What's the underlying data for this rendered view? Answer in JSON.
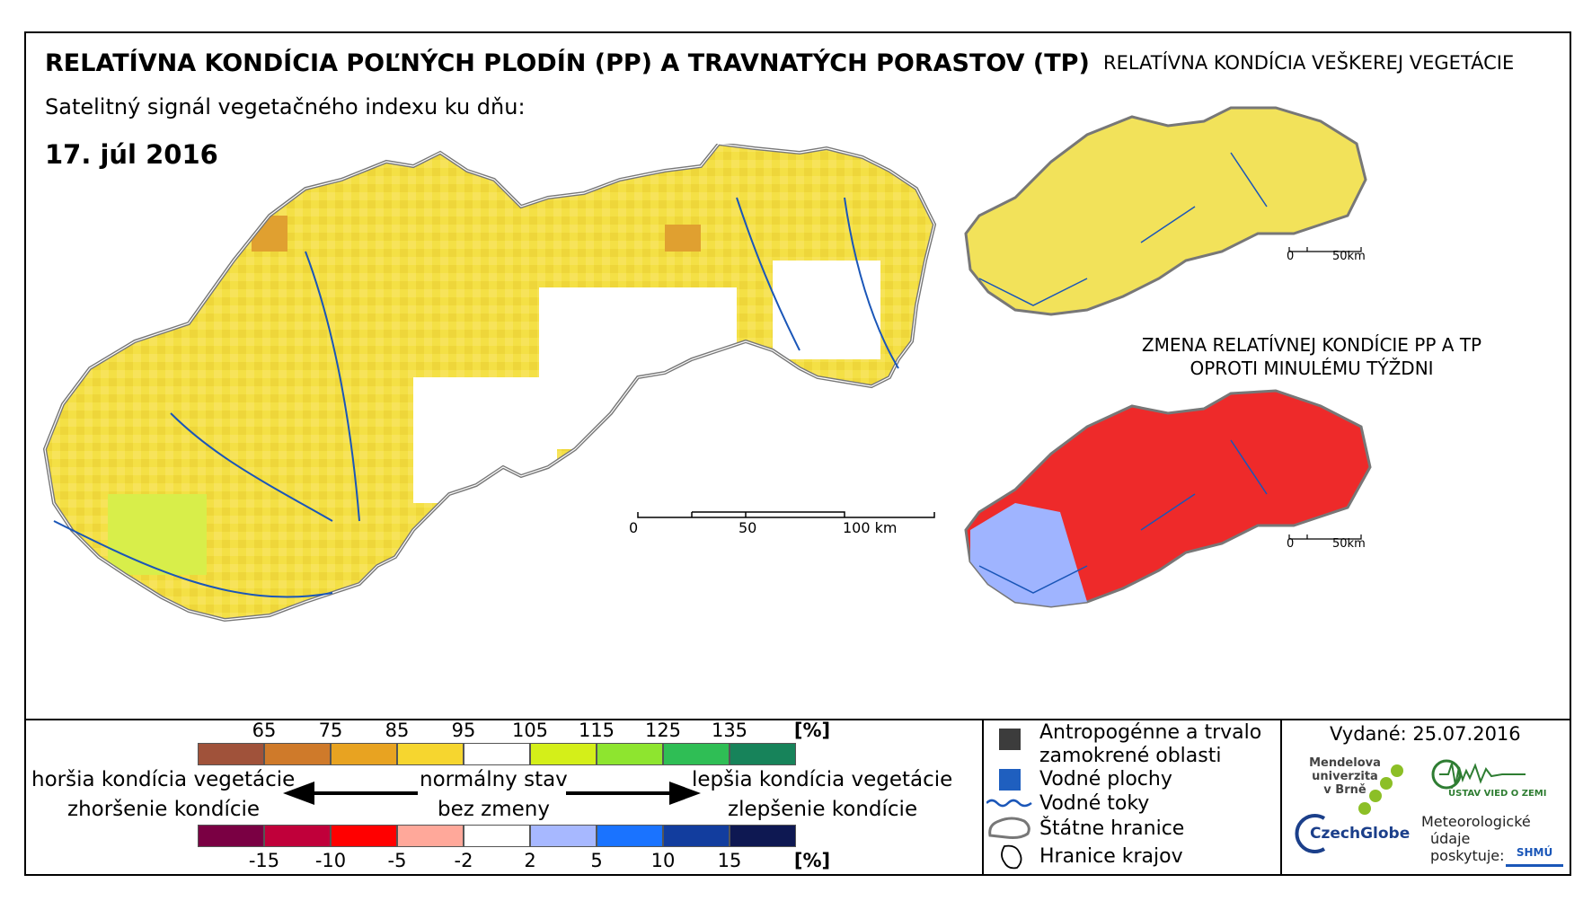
{
  "header": {
    "title": "RELATÍVNA KONDÍCIA POĽNÝCH PLODÍN (PP) A TRAVNATÝCH PORASTOV (TP)",
    "subtitle": "Satelitný signál vegetačného indexu ku dňu:",
    "date": "17. júl 2016"
  },
  "inset_top": {
    "title": "RELATÍVNA KONDÍCIA VEŠKEREJ VEGETÁCIE",
    "scale": [
      "0",
      "50km"
    ]
  },
  "inset_bottom": {
    "title_line1": "ZMENA RELATÍVNEJ KONDÍCIE PP A TP",
    "title_line2": "OPROTI MINULÉMU TÝŽDNI",
    "scale": [
      "0",
      "50km"
    ]
  },
  "main_scale": [
    "0",
    "50",
    "100 km"
  ],
  "legend": {
    "condition_ticks": [
      "65",
      "75",
      "85",
      "95",
      "105",
      "115",
      "125",
      "135",
      "[%]"
    ],
    "condition_colors": [
      "#a0523a",
      "#cf7a2a",
      "#e8a321",
      "#f6d62f",
      "#ffffff",
      "#d4ef19",
      "#8ee52f",
      "#2fbe55",
      "#17835a"
    ],
    "change_ticks": [
      "-15",
      "-10",
      "-5",
      "-2",
      "2",
      "5",
      "10",
      "15",
      "[%]"
    ],
    "change_colors": [
      "#7a0043",
      "#c0003a",
      "#ff0000",
      "#ffa89a",
      "#ffffff",
      "#a7b8ff",
      "#1a73ff",
      "#123d9e",
      "#0e1852"
    ],
    "worse_line1": "horšia kondícia vegetácie",
    "worse_line2": "zhoršenie kondície",
    "normal_line1": "normálny stav",
    "normal_line2": "bez zmeny",
    "better_line1": "lepšia kondícia vegetácie",
    "better_line2": "zlepšenie kondície"
  },
  "map_legend": {
    "anthropogenic_line1": "Antropogénne a trvalo",
    "anthropogenic_line2": "zamokrené oblasti",
    "water_bodies": "Vodné plochy",
    "rivers": "Vodné toky",
    "state_border": "Štátne hranice",
    "region_border": "Hranice krajov",
    "colors": {
      "anthropogenic": "#3c3c3c",
      "water": "#1f5fbf",
      "river": "#1a56b8"
    }
  },
  "issued": "Vydané: 25.07.2016",
  "logos": {
    "mendel_line1": "Mendelova",
    "mendel_line2": "univerzita",
    "mendel_line3": "v Brně",
    "czechglobe": "CzechGlobe",
    "ustav": "ÚSTAV VIED O ZEMI",
    "meteo_line1": "Meteorologické",
    "meteo_line2": "údaje",
    "meteo_line3": "poskytuje:",
    "shmu": "SHMÚ"
  }
}
